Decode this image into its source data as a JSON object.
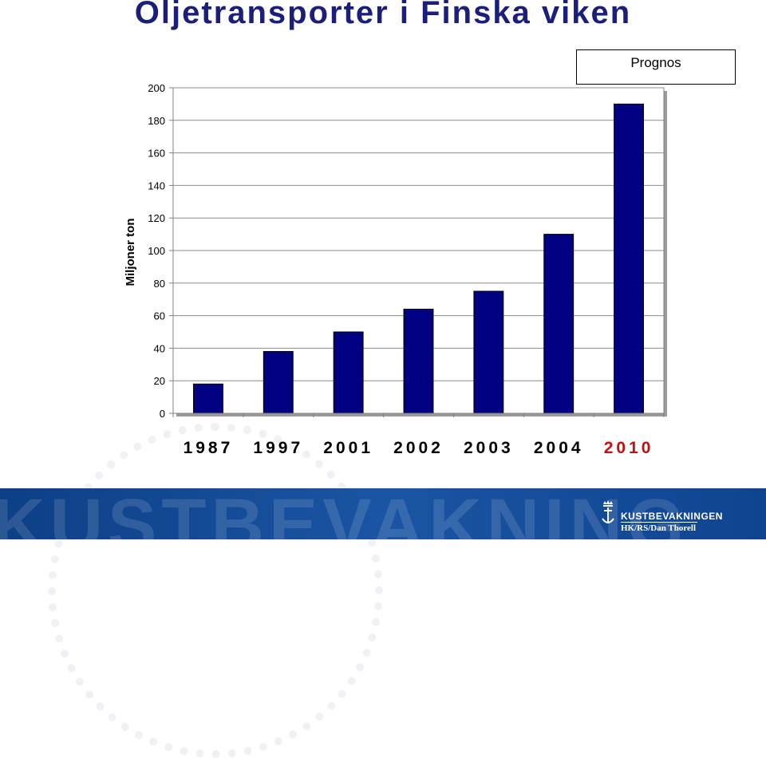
{
  "title": "Oljetransporter i Finska viken",
  "prognos_label": "Prognos",
  "chart_data": {
    "type": "bar",
    "categories": [
      "1987",
      "1997",
      "2001",
      "2002",
      "2003",
      "2004",
      "2010"
    ],
    "values": [
      18,
      38,
      50,
      64,
      75,
      110,
      190
    ],
    "ylabel": "Miljoner ton",
    "ylim": [
      0,
      200
    ],
    "yticks": [
      0,
      20,
      40,
      60,
      80,
      100,
      120,
      140,
      160,
      180,
      200
    ],
    "grid": true,
    "bar_color": "#000080",
    "highlight_category": "2010",
    "highlight_color": "#c01010"
  },
  "footer": {
    "watermark": "KUSTBEVAKNING",
    "logo_name": "KUSTBEVAKNINGEN",
    "credit": "HK/RS/Dan Thorell",
    "crest_icon": "crown-anchor-icon"
  }
}
